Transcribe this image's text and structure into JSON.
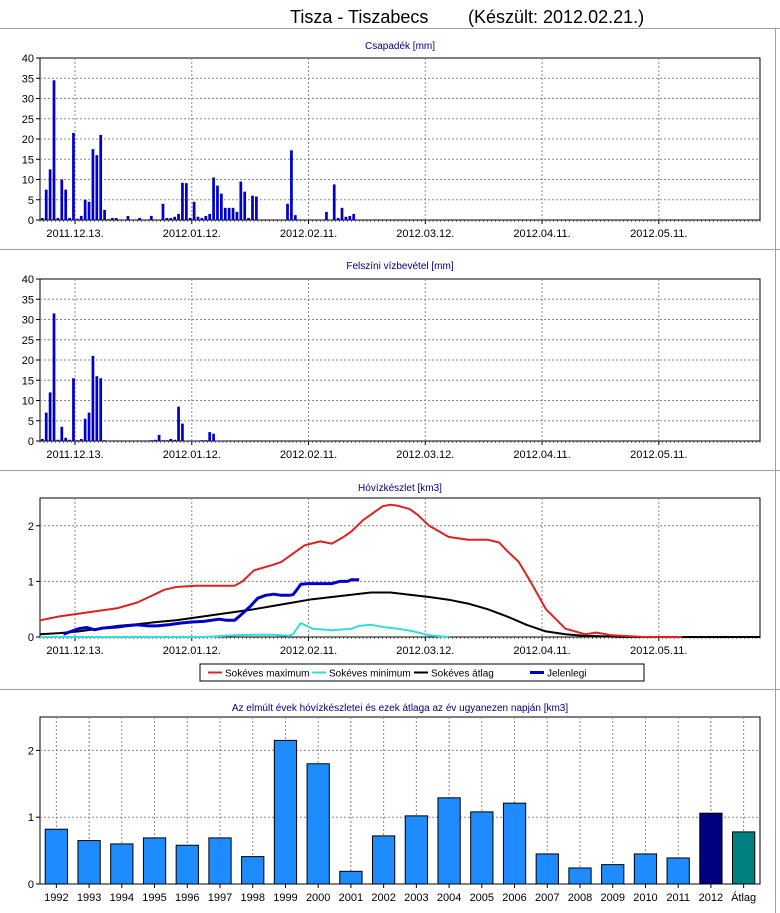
{
  "title": {
    "station": "Tisza - Tiszabecs",
    "made": "(Készült: 2012.02.21.)"
  },
  "colors": {
    "bar_blue": "#0000cc",
    "sokeves_max": "#dd2222",
    "sokeves_min": "#33dddd",
    "sokeves_atlag": "#000000",
    "jelenlegi": "#0000cc",
    "year_bar": "#1e8cff",
    "year_bar_2012": "#000080",
    "year_bar_atlag": "#008080"
  },
  "chart_data": [
    {
      "type": "bar",
      "title": "Csapadék [mm]",
      "ylim": [
        0,
        40
      ],
      "yticks": [
        "0",
        "5",
        "10",
        "15",
        "20",
        "25",
        "30",
        "35",
        "40"
      ],
      "xlim": [
        0,
        185
      ],
      "x_tick_labels": [
        "2011.12.13.",
        "2012.01.12.",
        "2012.02.11.",
        "2012.03.12.",
        "2012.04.11.",
        "2012.05.11."
      ],
      "x_tick_days": [
        9,
        39,
        69,
        99,
        129,
        159
      ],
      "grid": true,
      "x": [
        1,
        2,
        3,
        4,
        5,
        6,
        7,
        8,
        9,
        10,
        11,
        12,
        13,
        14,
        15,
        16,
        17,
        18,
        19,
        20,
        23,
        26,
        29,
        32,
        33,
        34,
        35,
        36,
        37,
        38,
        39,
        40,
        41,
        42,
        43,
        44,
        45,
        46,
        47,
        48,
        49,
        50,
        51,
        52,
        53,
        54,
        55,
        56,
        64,
        65,
        66,
        74,
        76,
        77,
        78,
        79,
        80,
        81
      ],
      "values": [
        0.5,
        7.5,
        12.5,
        34.5,
        0.5,
        10,
        7.5,
        0.5,
        21.5,
        0.3,
        1,
        5,
        4.5,
        17.5,
        16,
        21,
        2.5,
        0.2,
        0.5,
        0.5,
        1,
        0.5,
        1,
        4,
        0.5,
        0.5,
        0.8,
        1.5,
        9.2,
        9.1,
        0.5,
        4.5,
        0.8,
        0.5,
        1,
        1.5,
        10.5,
        8.5,
        6.5,
        3,
        3,
        3,
        2,
        9.5,
        7,
        0.5,
        6,
        5.8,
        4,
        17.2,
        1.2,
        2,
        8.8,
        0.5,
        3,
        0.8,
        1,
        1.5
      ]
    },
    {
      "type": "bar",
      "title": "Felszíni vízbevétel [mm]",
      "ylim": [
        0,
        40
      ],
      "yticks": [
        "0",
        "5",
        "10",
        "15",
        "20",
        "25",
        "30",
        "35",
        "40"
      ],
      "xlim": [
        0,
        185
      ],
      "x_tick_labels": [
        "2011.12.13.",
        "2012.01.12.",
        "2012.02.11.",
        "2012.03.12.",
        "2012.04.11.",
        "2012.05.11."
      ],
      "x_tick_days": [
        9,
        39,
        69,
        99,
        129,
        159
      ],
      "grid": true,
      "x": [
        1,
        2,
        3,
        4,
        5,
        6,
        7,
        8,
        9,
        10,
        11,
        12,
        13,
        14,
        15,
        16,
        17,
        18,
        29,
        30,
        31,
        32,
        33,
        34,
        35,
        36,
        37,
        38,
        39,
        40,
        41,
        42,
        43,
        44,
        45,
        46,
        47
      ],
      "values": [
        0.5,
        7,
        12,
        31.5,
        0.3,
        3.5,
        0.8,
        0.3,
        15.5,
        0.2,
        0.5,
        5.5,
        7,
        21,
        16,
        15.5,
        0.2,
        0.1,
        0.2,
        0.3,
        1.5,
        0.2,
        0.2,
        0.5,
        0.3,
        8.5,
        4.3,
        0.1,
        0.1,
        0.1,
        0.1,
        0.2,
        0.2,
        2.2,
        1.8,
        0.1,
        0.1
      ]
    },
    {
      "type": "line",
      "title": "Hóvízkészlet [km3]",
      "ylim": [
        0,
        2.5
      ],
      "yticks": [
        "0",
        "1",
        "2"
      ],
      "ytick_values": [
        0,
        1,
        2
      ],
      "xlim": [
        0,
        185
      ],
      "x_tick_labels": [
        "2011.12.13.",
        "2012.01.12.",
        "2012.02.11.",
        "2012.03.12.",
        "2012.04.11.",
        "2012.05.11."
      ],
      "x_tick_days": [
        9,
        39,
        69,
        99,
        129,
        159
      ],
      "grid": true,
      "legend_position": "bottom",
      "series": [
        {
          "name": "Sokéves maximum",
          "color_key": "sokeves_max",
          "x": [
            0,
            5,
            10,
            15,
            20,
            25,
            28,
            32,
            35,
            40,
            45,
            50,
            52,
            55,
            60,
            62,
            65,
            68,
            72,
            75,
            78,
            80,
            83,
            85,
            88,
            90,
            92,
            95,
            97,
            100,
            105,
            110,
            115,
            118,
            120,
            123,
            126,
            130,
            135,
            140,
            143,
            147,
            150,
            155,
            160,
            165
          ],
          "y": [
            0.3,
            0.37,
            0.42,
            0.47,
            0.52,
            0.62,
            0.72,
            0.85,
            0.9,
            0.92,
            0.92,
            0.92,
            1.0,
            1.2,
            1.3,
            1.35,
            1.5,
            1.65,
            1.72,
            1.68,
            1.8,
            1.9,
            2.1,
            2.2,
            2.35,
            2.38,
            2.36,
            2.3,
            2.2,
            2.0,
            1.8,
            1.75,
            1.75,
            1.7,
            1.55,
            1.35,
            1.0,
            0.5,
            0.15,
            0.05,
            0.08,
            0.03,
            0.02,
            0.0,
            0.0,
            0.0
          ]
        },
        {
          "name": "Sokéves minimum",
          "color_key": "sokeves_min",
          "x": [
            0,
            42,
            50,
            55,
            60,
            64,
            65,
            67,
            70,
            75,
            80,
            82,
            85,
            88,
            92,
            96,
            100,
            105
          ],
          "y": [
            0,
            0,
            0.03,
            0.04,
            0.04,
            0.02,
            0.05,
            0.25,
            0.15,
            0.12,
            0.15,
            0.2,
            0.22,
            0.18,
            0.15,
            0.1,
            0.03,
            0.0
          ]
        },
        {
          "name": "Sokéves átlag",
          "color_key": "sokeves_atlag",
          "x": [
            0,
            5,
            10,
            15,
            20,
            25,
            30,
            35,
            40,
            45,
            50,
            55,
            60,
            65,
            70,
            75,
            80,
            85,
            88,
            90,
            95,
            100,
            105,
            110,
            115,
            120,
            125,
            130,
            135,
            140,
            145,
            150,
            160,
            185
          ],
          "y": [
            0.05,
            0.07,
            0.1,
            0.15,
            0.2,
            0.23,
            0.27,
            0.3,
            0.35,
            0.4,
            0.45,
            0.5,
            0.56,
            0.62,
            0.68,
            0.72,
            0.76,
            0.8,
            0.8,
            0.8,
            0.76,
            0.72,
            0.67,
            0.6,
            0.5,
            0.37,
            0.22,
            0.1,
            0.05,
            0.02,
            0.01,
            0.0,
            0.0,
            0.0
          ]
        },
        {
          "name": "Jelenlegi",
          "color_key": "jelenlegi",
          "x": [
            6,
            8,
            10,
            12,
            14,
            16,
            18,
            20,
            22,
            25,
            28,
            30,
            33,
            36,
            39,
            42,
            44,
            46,
            48,
            50,
            52,
            54,
            56,
            58,
            60,
            62,
            64,
            65,
            66,
            67,
            69,
            72,
            75,
            77,
            79,
            80,
            82
          ],
          "y": [
            0.05,
            0.1,
            0.15,
            0.17,
            0.13,
            0.16,
            0.17,
            0.18,
            0.2,
            0.22,
            0.2,
            0.2,
            0.22,
            0.25,
            0.27,
            0.28,
            0.3,
            0.32,
            0.3,
            0.3,
            0.42,
            0.55,
            0.7,
            0.75,
            0.77,
            0.75,
            0.75,
            0.76,
            0.85,
            0.95,
            0.96,
            0.96,
            0.96,
            1.0,
            1.0,
            1.03,
            1.03
          ]
        }
      ]
    },
    {
      "type": "bar",
      "title": "Az elmúlt évek hóvízkészletei és ezek átlaga az év ugyanezen napján [km3]",
      "ylim": [
        0,
        2.5
      ],
      "yticks": [
        "0",
        "1",
        "2"
      ],
      "ytick_values": [
        0,
        1,
        2
      ],
      "grid": true,
      "categories": [
        "1992",
        "1993",
        "1994",
        "1995",
        "1996",
        "1997",
        "1998",
        "1999",
        "2000",
        "2001",
        "2002",
        "2003",
        "2004",
        "2005",
        "2006",
        "2007",
        "2008",
        "2009",
        "2010",
        "2011",
        "2012",
        "Átlag"
      ],
      "values": [
        0.82,
        0.65,
        0.6,
        0.69,
        0.58,
        0.69,
        0.41,
        2.15,
        1.8,
        0.19,
        0.72,
        1.02,
        1.29,
        1.08,
        1.21,
        0.45,
        0.24,
        0.29,
        0.45,
        0.39,
        1.06,
        0.78
      ]
    }
  ]
}
